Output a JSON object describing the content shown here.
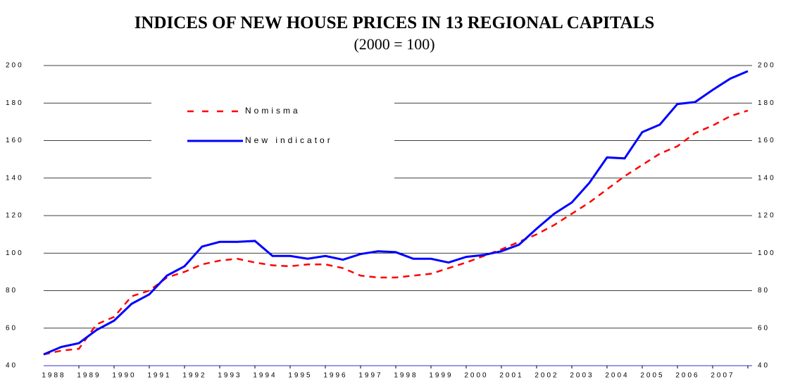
{
  "chart_data": {
    "type": "line",
    "title": "INDICES OF NEW HOUSE PRICES IN 13 REGIONAL CAPITALS",
    "subtitle": "(2000 = 100)",
    "categories": [
      "1988",
      null,
      "1989",
      null,
      "1990",
      null,
      "1991",
      null,
      "1992",
      null,
      "1993",
      null,
      "1994",
      null,
      "1995",
      null,
      "1996",
      null,
      "1997",
      null,
      "1998",
      null,
      "1999",
      null,
      "2000",
      null,
      "2001",
      null,
      "2002",
      null,
      "2003",
      null,
      "2004",
      null,
      "2005",
      null,
      "2006",
      null,
      "2007",
      null,
      null
    ],
    "series": [
      {
        "name": "Nomisma",
        "color": "#ff0000",
        "dash": true,
        "values": [
          46,
          48,
          49,
          62,
          66,
          77,
          80,
          87,
          90,
          94,
          96,
          97,
          95,
          93.5,
          93,
          94,
          94,
          92,
          88,
          87,
          87,
          88,
          89,
          92,
          95,
          98.5,
          102,
          106,
          110,
          115,
          121,
          127,
          134,
          141,
          147,
          153,
          157,
          164,
          168,
          173,
          176
        ]
      },
      {
        "name": "New indicator",
        "color": "#0000ff",
        "dash": false,
        "values": [
          46,
          50,
          52,
          59,
          64,
          73,
          78,
          88,
          93,
          103.5,
          106,
          106,
          106.5,
          98.5,
          98.5,
          97,
          98.5,
          96.5,
          99.5,
          101,
          100.5,
          97,
          97,
          95,
          98,
          99,
          101,
          104.5,
          113,
          121,
          127,
          137.5,
          151,
          150.5,
          164.5,
          168.5,
          179.5,
          180.5,
          187,
          193,
          197
        ]
      }
    ],
    "ylim": [
      40,
      200
    ],
    "yticks": [
      40,
      60,
      80,
      100,
      120,
      140,
      160,
      180,
      200
    ],
    "y2lim": [
      40,
      200
    ],
    "y2ticks": [
      40,
      60,
      80,
      100,
      120,
      140,
      160,
      180,
      200
    ],
    "grid": true
  }
}
